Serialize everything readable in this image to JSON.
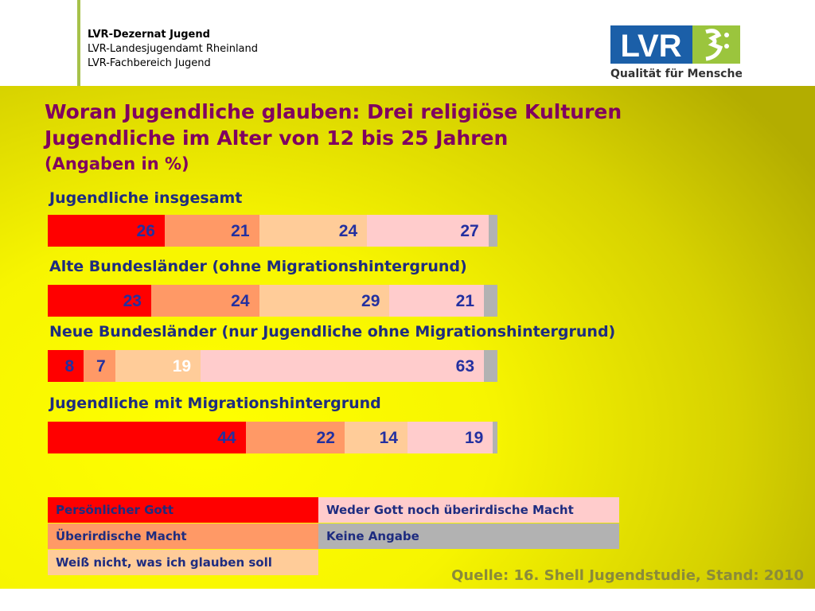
{
  "header": {
    "org_lines": [
      "LVR-Dezernat Jugend",
      "LVR-Landesjugendamt Rheinland",
      "LVR-Fachbereich Jugend"
    ],
    "logo_text": "LVR",
    "logo_tagline": "Qualität für Menschen",
    "logo_color": "#1b5fa8",
    "logo_accent": "#9bc53d"
  },
  "chart_data": {
    "type": "bar",
    "orientation": "horizontal-stacked",
    "title": "Woran Jugendliche glauben: Drei religiöse Kulturen",
    "title_line2": "Jugendliche im Alter von 12 bis 25 Jahren",
    "subtitle": "(Angaben in %)",
    "categories": [
      "Jugendliche insgesamt",
      "Alte Bundesländer (ohne Migrationshintergrund)",
      "Neue Bundesländer (nur Jugendliche ohne Migrationshintergrund)",
      "Jugendliche mit Migrationshintergrund"
    ],
    "series": [
      {
        "name": "Persönlicher Gott",
        "color": "#ff0000",
        "values": [
          26,
          23,
          8,
          44
        ]
      },
      {
        "name": "Überirdische Macht",
        "color": "#ff9966",
        "values": [
          21,
          24,
          7,
          22
        ]
      },
      {
        "name": "Weiß nicht, was ich glauben soll",
        "color": "#ffcc99",
        "values": [
          24,
          29,
          19,
          14
        ]
      },
      {
        "name": "Weder Gott noch überirdische Macht",
        "color": "#ffcccc",
        "values": [
          27,
          21,
          63,
          19
        ]
      },
      {
        "name": "Keine Angabe",
        "color": "#b2b2b2",
        "values": [
          2,
          3,
          3,
          1
        ]
      }
    ],
    "value_labels_shown": [
      [
        true,
        true,
        true,
        true,
        false
      ],
      [
        true,
        true,
        true,
        true,
        false
      ],
      [
        true,
        true,
        true,
        true,
        false
      ],
      [
        true,
        true,
        true,
        true,
        false
      ]
    ],
    "xlim": [
      0,
      100
    ],
    "legend": "bottom-left",
    "grid": false
  },
  "source": "Quelle: 16. Shell Jugendstudie, Stand: 2010"
}
